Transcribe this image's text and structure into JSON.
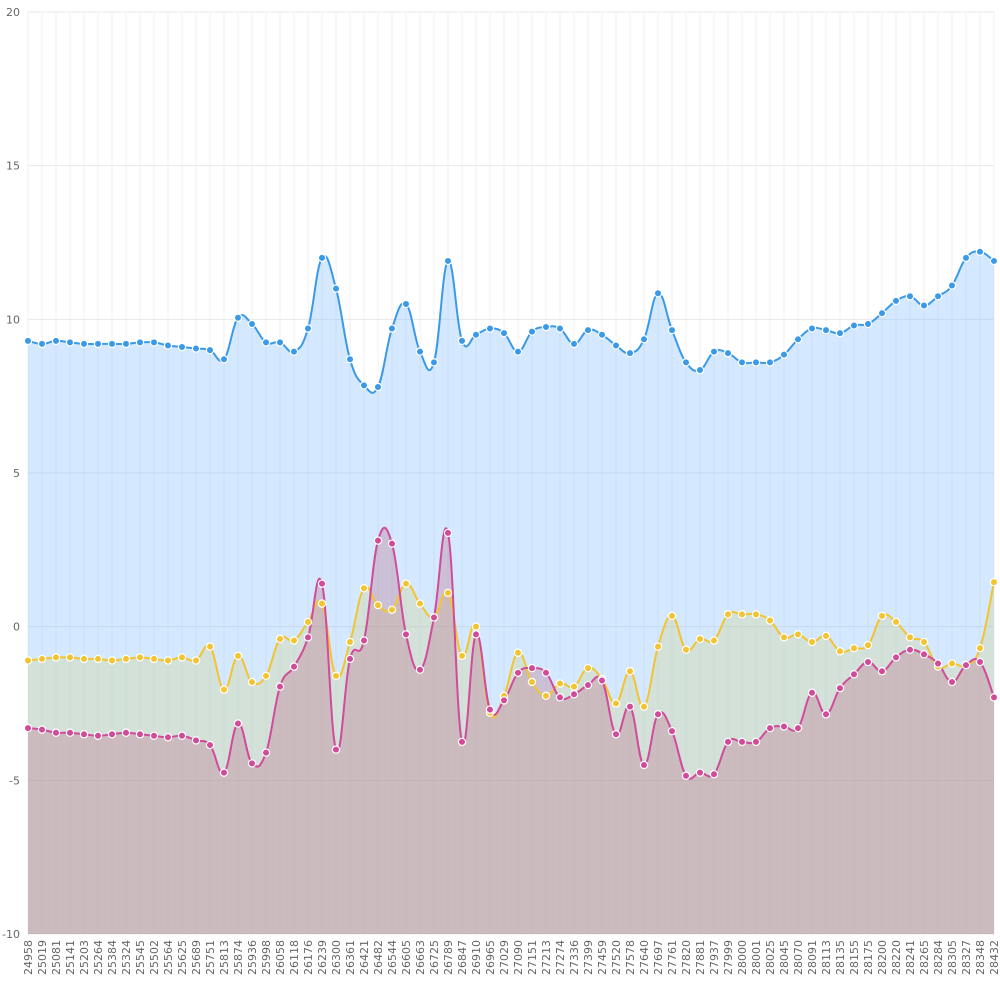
{
  "chart_data": {
    "type": "area",
    "title": "",
    "xlabel": "",
    "ylabel": "",
    "ylim": [
      -10,
      20
    ],
    "y_ticks": [
      "-10",
      "-5",
      "0",
      "5",
      "10",
      "15",
      "20"
    ],
    "grid": true,
    "legend": "none",
    "categories": [
      "24958",
      "25019",
      "25081",
      "25141",
      "25203",
      "25264",
      "25384",
      "25324",
      "25545",
      "25502",
      "25564",
      "25625",
      "25689",
      "25751",
      "25813",
      "25874",
      "25936",
      "25998",
      "26058",
      "26118",
      "26176",
      "26239",
      "26300",
      "26361",
      "26421",
      "26482",
      "26544",
      "26605",
      "26663",
      "26725",
      "26789",
      "26847",
      "26910",
      "26965",
      "27029",
      "27090",
      "27151",
      "27213",
      "27274",
      "27336",
      "27399",
      "27459",
      "27520",
      "27578",
      "27640",
      "27697",
      "27761",
      "27820",
      "27881",
      "27937",
      "27999",
      "28000",
      "28001",
      "28025",
      "28045",
      "28070",
      "28091",
      "28113",
      "28135",
      "28155",
      "28175",
      "28200",
      "28220",
      "28241",
      "28265",
      "28284",
      "28305",
      "28327",
      "28348",
      "28432"
    ],
    "series": [
      {
        "color": "#3b9ae8",
        "fill": "rgba(122,186,255,0.32)",
        "values": [
          9.3,
          9.2,
          9.3,
          9.25,
          9.2,
          9.2,
          9.2,
          9.2,
          9.25,
          9.25,
          9.15,
          9.1,
          9.05,
          9.0,
          8.7,
          10.05,
          9.85,
          9.25,
          9.25,
          8.95,
          9.7,
          12.0,
          11.0,
          8.7,
          7.85,
          7.8,
          9.7,
          10.5,
          8.95,
          8.6,
          11.9,
          9.3,
          9.5,
          9.7,
          9.55,
          8.95,
          9.6,
          9.75,
          9.7,
          9.2,
          9.65,
          9.5,
          9.15,
          8.9,
          9.35,
          10.85,
          9.65,
          8.6,
          8.35,
          8.95,
          8.9,
          8.6,
          8.6,
          8.6,
          8.85,
          9.35,
          9.7,
          9.65,
          9.55,
          9.8,
          9.85,
          10.2,
          10.6,
          10.75,
          10.45,
          10.75,
          11.1,
          12.0,
          12.2,
          11.9
        ]
      },
      {
        "color": "#f4c430",
        "fill": "rgba(209,205,120,0.28)",
        "values": [
          -1.1,
          -1.05,
          -1.0,
          -1.0,
          -1.05,
          -1.05,
          -1.1,
          -1.05,
          -1.0,
          -1.05,
          -1.1,
          -1.0,
          -1.1,
          -0.65,
          -2.05,
          -0.95,
          -1.8,
          -1.6,
          -0.4,
          -0.45,
          0.15,
          0.75,
          -1.6,
          -0.5,
          1.25,
          0.7,
          0.55,
          1.4,
          0.75,
          0.3,
          1.1,
          -0.95,
          0.0,
          -2.8,
          -2.25,
          -0.85,
          -1.8,
          -2.25,
          -1.85,
          -1.95,
          -1.35,
          -1.7,
          -2.5,
          -1.45,
          -2.6,
          -0.65,
          0.35,
          -0.75,
          -0.4,
          -0.45,
          0.4,
          0.4,
          0.4,
          0.2,
          -0.35,
          -0.25,
          -0.5,
          -0.3,
          -0.8,
          -0.7,
          -0.6,
          0.35,
          0.15,
          -0.35,
          -0.5,
          -1.3,
          -1.2,
          -1.25,
          -0.7,
          1.45
        ]
      },
      {
        "color": "#d24a9a",
        "fill": "rgba(190,120,140,0.36)",
        "values": [
          -3.3,
          -3.35,
          -3.45,
          -3.45,
          -3.5,
          -3.55,
          -3.5,
          -3.45,
          -3.5,
          -3.55,
          -3.6,
          -3.55,
          -3.7,
          -3.85,
          -4.75,
          -3.15,
          -4.45,
          -4.1,
          -1.95,
          -1.3,
          -0.35,
          1.4,
          -4.0,
          -1.05,
          -0.45,
          2.8,
          2.7,
          -0.25,
          -1.4,
          0.3,
          3.05,
          -3.75,
          -0.25,
          -2.7,
          -2.4,
          -1.5,
          -1.35,
          -1.5,
          -2.3,
          -2.2,
          -1.9,
          -1.75,
          -3.5,
          -2.6,
          -4.5,
          -2.85,
          -3.4,
          -4.85,
          -4.75,
          -4.8,
          -3.75,
          -3.75,
          -3.75,
          -3.3,
          -3.25,
          -3.3,
          -2.15,
          -2.85,
          -2.0,
          -1.55,
          -1.15,
          -1.45,
          -1.0,
          -0.75,
          -0.9,
          -1.2,
          -1.8,
          -1.25,
          -1.15,
          -2.3
        ]
      }
    ]
  }
}
